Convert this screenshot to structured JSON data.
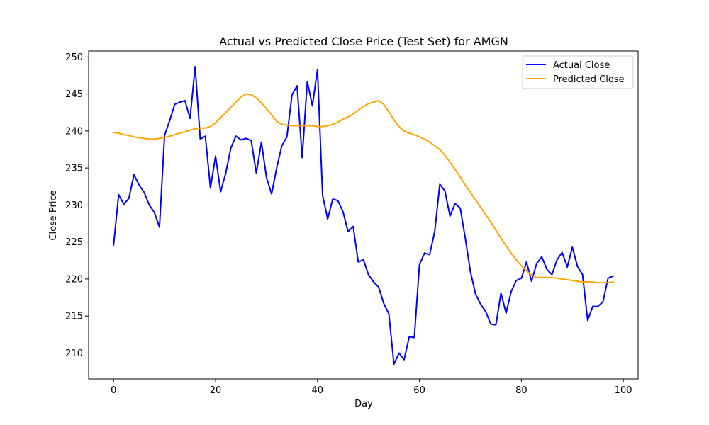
{
  "chart_data": {
    "type": "line",
    "title": "Actual vs Predicted Close Price (Test Set) for AMGN",
    "xlabel": "Day",
    "ylabel": "Close Price",
    "xlim": [
      -4.9,
      102.9
    ],
    "ylim": [
      206.5,
      250.8
    ],
    "xticks": [
      0,
      20,
      40,
      60,
      80,
      100
    ],
    "yticks": [
      210,
      215,
      220,
      225,
      230,
      235,
      240,
      245,
      250
    ],
    "grid": false,
    "legend_position": "top-right",
    "series": [
      {
        "name": "Actual Close",
        "color": "#0000ff",
        "x": [
          0,
          1,
          2,
          3,
          4,
          5,
          6,
          7,
          8,
          9,
          10,
          11,
          12,
          13,
          14,
          15,
          16,
          17,
          18,
          19,
          20,
          21,
          22,
          23,
          24,
          25,
          26,
          27,
          28,
          29,
          30,
          31,
          32,
          33,
          34,
          35,
          36,
          37,
          38,
          39,
          40,
          41,
          42,
          43,
          44,
          45,
          46,
          47,
          48,
          49,
          50,
          51,
          52,
          53,
          54,
          55,
          56,
          57,
          58,
          59,
          60,
          61,
          62,
          63,
          64,
          65,
          66,
          67,
          68,
          69,
          70,
          71,
          72,
          73,
          74,
          75,
          76,
          77,
          78,
          79,
          80,
          81,
          82,
          83,
          84,
          85,
          86,
          87,
          88,
          89,
          90,
          91,
          92,
          93,
          94,
          95,
          96,
          97,
          98
        ],
        "values": [
          224.6,
          231.4,
          230.1,
          230.9,
          234.1,
          232.7,
          231.7,
          230.0,
          229.0,
          227.0,
          239.4,
          241.4,
          243.6,
          243.9,
          244.1,
          241.7,
          248.7,
          238.9,
          239.3,
          232.3,
          236.6,
          231.8,
          234.3,
          237.7,
          239.3,
          238.8,
          239.0,
          238.7,
          234.3,
          238.5,
          233.7,
          231.5,
          235.0,
          238.0,
          239.2,
          244.9,
          246.1,
          236.4,
          246.7,
          243.4,
          248.3,
          231.3,
          228.1,
          230.8,
          230.6,
          229.1,
          226.4,
          227.1,
          222.3,
          222.6,
          220.6,
          219.6,
          218.9,
          216.7,
          215.3,
          208.5,
          210.0,
          209.1,
          212.2,
          212.1,
          221.9,
          223.5,
          223.3,
          226.4,
          232.8,
          231.9,
          228.5,
          230.2,
          229.6,
          225.5,
          221.0,
          218.0,
          216.6,
          215.6,
          213.9,
          213.8,
          218.1,
          215.4,
          218.3,
          219.8,
          220.1,
          222.3,
          219.7,
          222.1,
          223.0,
          221.3,
          220.6,
          222.6,
          223.6,
          221.6,
          224.3,
          221.7,
          220.6,
          214.4,
          216.3,
          216.3,
          216.9,
          220.1,
          220.4
        ]
      },
      {
        "name": "Predicted Close",
        "color": "#ffa500",
        "x": [
          0,
          1,
          2,
          3,
          4,
          5,
          6,
          7,
          8,
          9,
          10,
          11,
          12,
          13,
          14,
          15,
          16,
          17,
          18,
          19,
          20,
          21,
          22,
          23,
          24,
          25,
          26,
          27,
          28,
          29,
          30,
          31,
          32,
          33,
          34,
          35,
          36,
          37,
          38,
          39,
          40,
          41,
          42,
          43,
          44,
          45,
          46,
          47,
          48,
          49,
          50,
          51,
          52,
          53,
          54,
          55,
          56,
          57,
          58,
          59,
          60,
          61,
          62,
          63,
          64,
          65,
          66,
          67,
          68,
          69,
          70,
          71,
          72,
          73,
          74,
          75,
          76,
          77,
          78,
          79,
          80,
          81,
          82,
          83,
          84,
          85,
          86,
          87,
          88,
          89,
          90,
          91,
          92,
          93,
          94,
          95,
          96,
          97,
          98
        ],
        "values": [
          239.8,
          239.7,
          239.5,
          239.4,
          239.2,
          239.1,
          239.0,
          238.9,
          238.9,
          239.0,
          239.1,
          239.3,
          239.5,
          239.7,
          239.9,
          240.1,
          240.3,
          240.4,
          240.4,
          240.6,
          241.1,
          241.8,
          242.5,
          243.2,
          243.9,
          244.6,
          245.0,
          244.9,
          244.5,
          243.8,
          243.0,
          242.2,
          241.3,
          240.9,
          240.8,
          240.7,
          240.7,
          240.7,
          240.7,
          240.7,
          240.6,
          240.6,
          240.7,
          240.9,
          241.2,
          241.6,
          241.9,
          242.3,
          242.8,
          243.3,
          243.7,
          243.9,
          244.1,
          243.6,
          242.6,
          241.5,
          240.6,
          240.0,
          239.7,
          239.5,
          239.2,
          238.9,
          238.5,
          238.0,
          237.5,
          236.7,
          235.8,
          234.8,
          233.8,
          232.7,
          231.7,
          230.7,
          229.7,
          228.7,
          227.7,
          226.6,
          225.5,
          224.5,
          223.5,
          222.6,
          221.8,
          221.1,
          220.5,
          220.2,
          220.2,
          220.2,
          220.2,
          220.1,
          220.0,
          219.9,
          219.8,
          219.7,
          219.6,
          219.6,
          219.6,
          219.5,
          219.5,
          219.5,
          219.6
        ]
      }
    ]
  }
}
